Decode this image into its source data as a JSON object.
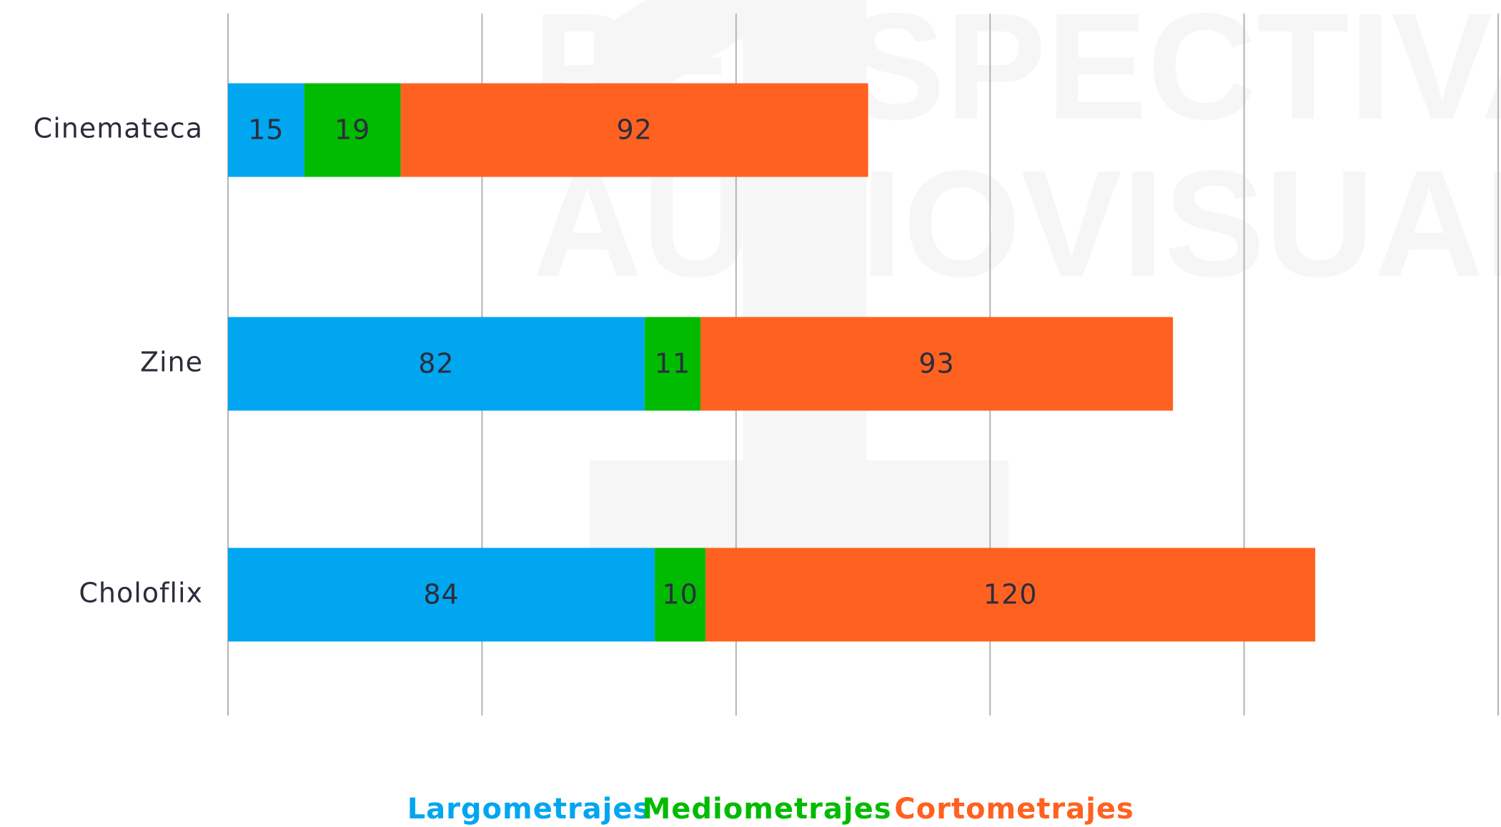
{
  "chart_data": {
    "type": "bar",
    "orientation": "horizontal",
    "stacked": true,
    "watermark": [
      "PERSPECTIVA",
      "AUDIOVISUAL",
      "1"
    ],
    "categories": [
      "Cinemateca",
      "Zine",
      "Choloflix"
    ],
    "series": [
      {
        "name": "Largometrajes",
        "color": "#00a6f0",
        "values": [
          15,
          82,
          84
        ]
      },
      {
        "name": "Mediometrajes",
        "color": "#00bb00",
        "values": [
          19,
          11,
          10
        ]
      },
      {
        "name": "Cortometrajes",
        "color": "#ff6120",
        "values": [
          92,
          93,
          120
        ]
      }
    ],
    "xlim": [
      0,
      250
    ],
    "xticks": [
      0,
      50,
      100,
      150,
      200,
      250
    ],
    "grid": true,
    "legend": "bottom"
  }
}
